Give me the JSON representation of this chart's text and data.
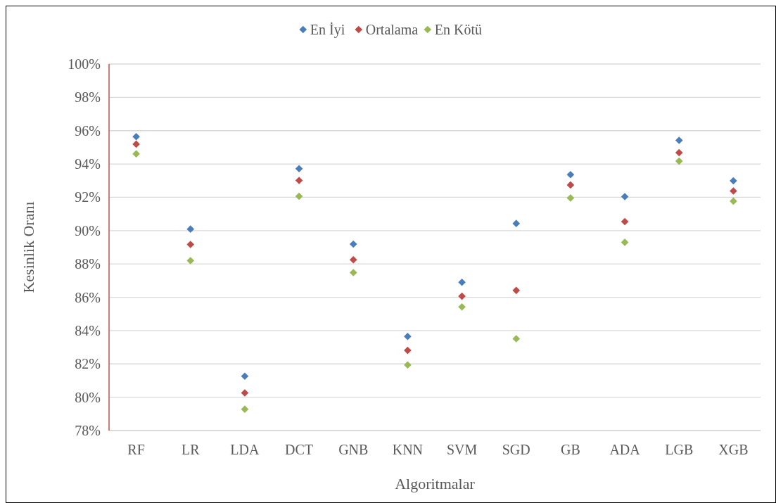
{
  "chart_data": {
    "type": "scatter",
    "xlabel": "Algoritmalar",
    "ylabel": "Kesinlik Oranı",
    "categories": [
      "RF",
      "LR",
      "LDA",
      "DCT",
      "GNB",
      "KNN",
      "SVM",
      "SGD",
      "GB",
      "ADA",
      "LGB",
      "XGB"
    ],
    "series": [
      {
        "name": "En İyi",
        "color": "#4a7ebb",
        "values": [
          95.64,
          90.09,
          81.26,
          93.72,
          89.19,
          83.65,
          86.9,
          90.43,
          93.36,
          92.04,
          95.42,
          92.99
        ]
      },
      {
        "name": "Ortalama",
        "color": "#be4b48",
        "values": [
          95.19,
          89.17,
          80.26,
          93.01,
          88.25,
          82.81,
          86.06,
          86.41,
          92.74,
          90.54,
          94.68,
          92.38
        ]
      },
      {
        "name": "En Kötü",
        "color": "#98b954",
        "values": [
          94.61,
          88.2,
          79.28,
          92.06,
          87.48,
          81.94,
          85.42,
          83.51,
          91.96,
          89.3,
          94.17,
          91.77
        ]
      }
    ],
    "ylim": [
      78,
      100
    ],
    "yticks": [
      {
        "value": 78,
        "label": "78%"
      },
      {
        "value": 80,
        "label": "80%"
      },
      {
        "value": 82,
        "label": "82%"
      },
      {
        "value": 84,
        "label": "84%"
      },
      {
        "value": 86,
        "label": "86%"
      },
      {
        "value": 88,
        "label": "88%"
      },
      {
        "value": 90,
        "label": "90%"
      },
      {
        "value": 92,
        "label": "92%"
      },
      {
        "value": 94,
        "label": "94%"
      },
      {
        "value": 96,
        "label": "96%"
      },
      {
        "value": 98,
        "label": "98%"
      },
      {
        "value": 100,
        "label": "100%"
      }
    ],
    "grid": "y",
    "legend": "top",
    "marker": "diamond"
  }
}
